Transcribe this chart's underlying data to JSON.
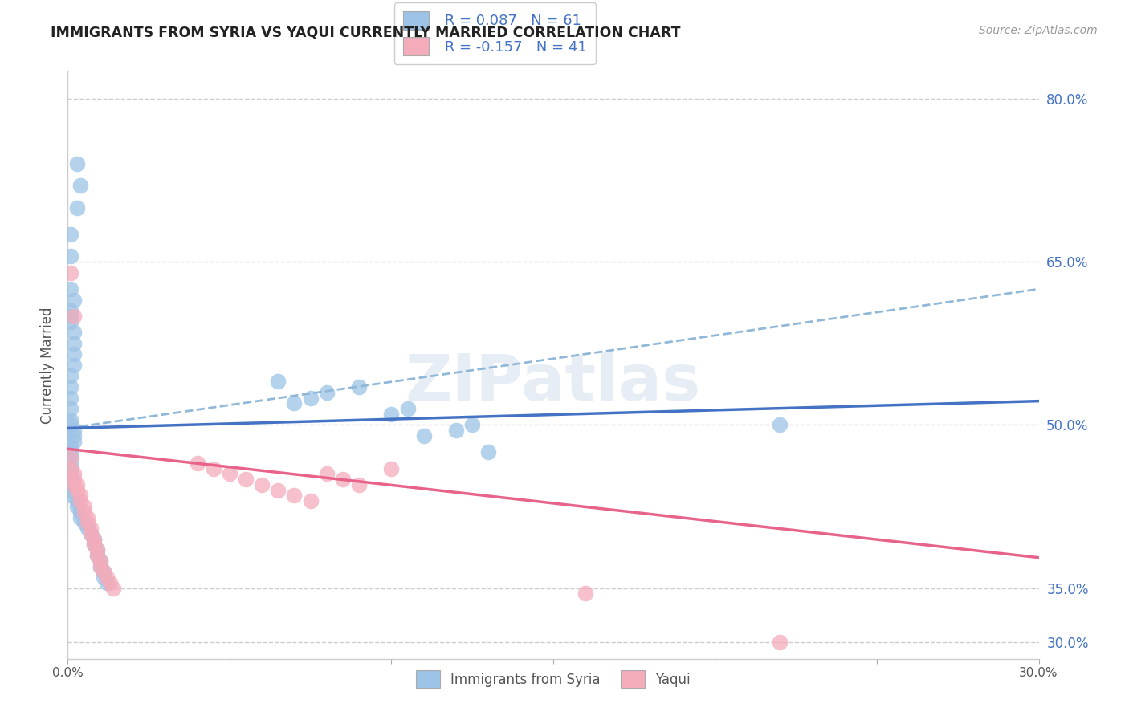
{
  "title": "IMMIGRANTS FROM SYRIA VS YAQUI CURRENTLY MARRIED CORRELATION CHART",
  "source": "Source: ZipAtlas.com",
  "ylabel": "Currently Married",
  "xmin": 0.0,
  "xmax": 0.3,
  "ymin": 0.285,
  "ymax": 0.825,
  "x_ticks": [
    0.0,
    0.05,
    0.1,
    0.15,
    0.2,
    0.25,
    0.3
  ],
  "x_tick_labels": [
    "0.0%",
    "",
    "",
    "",
    "",
    "",
    "30.0%"
  ],
  "y_tick_labels_right": [
    "80.0%",
    "65.0%",
    "50.0%",
    "35.0%",
    "30.0%"
  ],
  "y_tick_vals_right": [
    0.8,
    0.65,
    0.5,
    0.35,
    0.3
  ],
  "legend_blue_label": "Immigrants from Syria",
  "legend_pink_label": "Yaqui",
  "legend_R_blue": "R = 0.087",
  "legend_N_blue": "N = 61",
  "legend_R_pink": "R = -0.157",
  "legend_N_pink": "N = 41",
  "blue_solid_line": [
    [
      0.0,
      0.497
    ],
    [
      0.3,
      0.522
    ]
  ],
  "blue_dash_line": [
    [
      0.0,
      0.497
    ],
    [
      0.3,
      0.625
    ]
  ],
  "pink_solid_line": [
    [
      0.0,
      0.478
    ],
    [
      0.3,
      0.378
    ]
  ],
  "blue_scatter_x": [
    0.003,
    0.004,
    0.003,
    0.001,
    0.001,
    0.001,
    0.002,
    0.001,
    0.001,
    0.001,
    0.002,
    0.002,
    0.002,
    0.002,
    0.001,
    0.001,
    0.001,
    0.001,
    0.001,
    0.001,
    0.002,
    0.002,
    0.002,
    0.001,
    0.001,
    0.001,
    0.001,
    0.001,
    0.001,
    0.001,
    0.001,
    0.001,
    0.001,
    0.003,
    0.003,
    0.004,
    0.004,
    0.005,
    0.006,
    0.007,
    0.008,
    0.008,
    0.009,
    0.009,
    0.01,
    0.01,
    0.011,
    0.011,
    0.012,
    0.065,
    0.07,
    0.075,
    0.08,
    0.09,
    0.1,
    0.105,
    0.11,
    0.12,
    0.125,
    0.13,
    0.22
  ],
  "blue_scatter_y": [
    0.74,
    0.72,
    0.7,
    0.675,
    0.655,
    0.625,
    0.615,
    0.605,
    0.6,
    0.595,
    0.585,
    0.575,
    0.565,
    0.555,
    0.545,
    0.535,
    0.525,
    0.515,
    0.505,
    0.5,
    0.495,
    0.49,
    0.485,
    0.48,
    0.475,
    0.47,
    0.465,
    0.46,
    0.455,
    0.45,
    0.445,
    0.44,
    0.435,
    0.43,
    0.425,
    0.42,
    0.415,
    0.41,
    0.405,
    0.4,
    0.395,
    0.39,
    0.385,
    0.38,
    0.375,
    0.37,
    0.365,
    0.36,
    0.355,
    0.54,
    0.52,
    0.525,
    0.53,
    0.535,
    0.51,
    0.515,
    0.49,
    0.495,
    0.5,
    0.475,
    0.5
  ],
  "pink_scatter_x": [
    0.001,
    0.001,
    0.001,
    0.002,
    0.002,
    0.002,
    0.003,
    0.003,
    0.004,
    0.004,
    0.005,
    0.005,
    0.006,
    0.006,
    0.007,
    0.007,
    0.008,
    0.008,
    0.009,
    0.009,
    0.01,
    0.01,
    0.011,
    0.012,
    0.013,
    0.014,
    0.04,
    0.045,
    0.05,
    0.055,
    0.06,
    0.065,
    0.07,
    0.075,
    0.08,
    0.085,
    0.09,
    0.1,
    0.16,
    0.22,
    0.002
  ],
  "pink_scatter_y": [
    0.64,
    0.47,
    0.46,
    0.455,
    0.45,
    0.445,
    0.445,
    0.44,
    0.435,
    0.43,
    0.425,
    0.42,
    0.415,
    0.41,
    0.405,
    0.4,
    0.395,
    0.39,
    0.385,
    0.38,
    0.375,
    0.37,
    0.365,
    0.36,
    0.355,
    0.35,
    0.465,
    0.46,
    0.455,
    0.45,
    0.445,
    0.44,
    0.435,
    0.43,
    0.455,
    0.45,
    0.445,
    0.46,
    0.345,
    0.3,
    0.6
  ],
  "blue_line_color": "#4472C4",
  "pink_line_color": "#E8638A",
  "blue_dash_color": "#90B8D8",
  "blue_scatter_color": "#9DC3E6",
  "pink_scatter_color": "#F4ACBB",
  "watermark_text": "ZIPatlas",
  "background_color": "#FFFFFF",
  "grid_color": "#CCCCCC",
  "grid_linestyle": "--"
}
